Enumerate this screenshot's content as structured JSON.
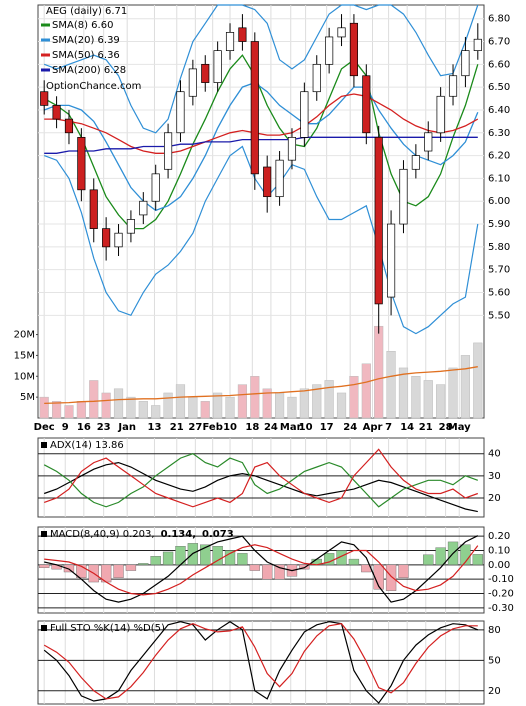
{
  "chart_data": [
    {
      "type": "candlestick",
      "title": "AEG (daily) 6.71",
      "annotation": "OptionChance.com",
      "xlim": [
        -0.5,
        35.5
      ],
      "xticks": [
        {
          "value": 0,
          "label": "Dec"
        },
        {
          "value": 1.7,
          "label": "9"
        },
        {
          "value": 3.2,
          "label": "16"
        },
        {
          "value": 4.8,
          "label": "23"
        },
        {
          "value": 6.7,
          "label": "Jan"
        },
        {
          "value": 8.9,
          "label": "13"
        },
        {
          "value": 10.7,
          "label": "21"
        },
        {
          "value": 12.2,
          "label": "27"
        },
        {
          "value": 13.6,
          "label": "Feb"
        },
        {
          "value": 15,
          "label": "10"
        },
        {
          "value": 16.8,
          "label": "18"
        },
        {
          "value": 18.3,
          "label": "24"
        },
        {
          "value": 19.9,
          "label": "Mar"
        },
        {
          "value": 21.1,
          "label": "10"
        },
        {
          "value": 22.8,
          "label": "17"
        },
        {
          "value": 24.7,
          "label": "24"
        },
        {
          "value": 26.5,
          "label": "Apr"
        },
        {
          "value": 27.8,
          "label": "7"
        },
        {
          "value": 29.3,
          "label": "14"
        },
        {
          "value": 30.8,
          "label": "21"
        },
        {
          "value": 32.4,
          "label": "28"
        },
        {
          "value": 33.5,
          "label": "May"
        }
      ],
      "ylim": [
        5.05,
        6.86
      ],
      "yticks": [
        {
          "value": 5.5,
          "label": "5.50"
        },
        {
          "value": 5.6,
          "label": "5.60"
        },
        {
          "value": 5.7,
          "label": "5.70"
        },
        {
          "value": 5.8,
          "label": "5.80"
        },
        {
          "value": 5.9,
          "label": "5.90"
        },
        {
          "value": 6.0,
          "label": "6.00"
        },
        {
          "value": 6.1,
          "label": "6.10"
        },
        {
          "value": 6.2,
          "label": "6.20"
        },
        {
          "value": 6.3,
          "label": "6.30"
        },
        {
          "value": 6.4,
          "label": "6.40"
        },
        {
          "value": 6.5,
          "label": "6.50"
        },
        {
          "value": 6.6,
          "label": "6.60"
        },
        {
          "value": 6.7,
          "label": "6.70"
        },
        {
          "value": 6.8,
          "label": "6.80"
        }
      ],
      "grid": true,
      "up_color": "#ffffff",
      "down_color": "#cc2020",
      "open": [
        6.48,
        6.42,
        6.36,
        6.28,
        6.05,
        5.88,
        5.8,
        5.86,
        5.94,
        6.0,
        6.14,
        6.3,
        6.46,
        6.6,
        6.52,
        6.66,
        6.76,
        6.7,
        6.15,
        6.02,
        6.18,
        6.28,
        6.48,
        6.6,
        6.72,
        6.78,
        6.55,
        6.28,
        5.58,
        5.9,
        6.14,
        6.22,
        6.3,
        6.46,
        6.55,
        6.66
      ],
      "high": [
        6.53,
        6.46,
        6.4,
        6.32,
        6.1,
        5.93,
        5.9,
        5.96,
        6.04,
        6.16,
        6.34,
        6.53,
        6.62,
        6.64,
        6.7,
        6.78,
        6.82,
        6.74,
        6.2,
        6.22,
        6.32,
        6.52,
        6.64,
        6.76,
        6.82,
        6.82,
        6.6,
        6.33,
        5.96,
        6.18,
        6.25,
        6.35,
        6.5,
        6.6,
        6.72,
        6.78
      ],
      "low": [
        6.38,
        6.32,
        6.25,
        6.0,
        5.82,
        5.74,
        5.76,
        5.82,
        5.9,
        5.96,
        6.1,
        6.26,
        6.42,
        6.48,
        6.48,
        6.62,
        6.66,
        6.05,
        5.95,
        5.98,
        6.14,
        6.24,
        6.44,
        6.56,
        6.68,
        6.5,
        6.25,
        5.42,
        5.5,
        5.86,
        6.1,
        6.18,
        6.26,
        6.42,
        6.5,
        6.62
      ],
      "close": [
        6.42,
        6.36,
        6.3,
        6.05,
        5.88,
        5.8,
        5.86,
        5.92,
        6.0,
        6.12,
        6.3,
        6.48,
        6.58,
        6.52,
        6.66,
        6.74,
        6.7,
        6.12,
        6.02,
        6.18,
        6.28,
        6.48,
        6.6,
        6.72,
        6.76,
        6.55,
        6.3,
        5.55,
        5.9,
        6.14,
        6.2,
        6.3,
        6.46,
        6.55,
        6.66,
        6.71
      ],
      "series": [
        {
          "name": "SMA(8) 6.60",
          "color": "#1a8a1a",
          "values": [
            6.45,
            6.42,
            6.38,
            6.28,
            6.15,
            6.02,
            5.94,
            5.88,
            5.88,
            5.92,
            6.0,
            6.12,
            6.25,
            6.36,
            6.48,
            6.58,
            6.64,
            6.55,
            6.42,
            6.32,
            6.25,
            6.24,
            6.32,
            6.45,
            6.58,
            6.62,
            6.55,
            6.3,
            6.12,
            6.0,
            5.98,
            6.02,
            6.12,
            6.28,
            6.42,
            6.6
          ]
        },
        {
          "name": "SMA(20) 6.39",
          "color": "#2f8fd6",
          "values": [
            6.4,
            6.42,
            6.42,
            6.4,
            6.35,
            6.26,
            6.16,
            6.06,
            6.0,
            5.96,
            5.98,
            6.02,
            6.1,
            6.2,
            6.32,
            6.42,
            6.5,
            6.52,
            6.48,
            6.42,
            6.38,
            6.34,
            6.34,
            6.38,
            6.44,
            6.5,
            6.5,
            6.4,
            6.32,
            6.25,
            6.2,
            6.18,
            6.16,
            6.2,
            6.26,
            6.39
          ]
        },
        {
          "name": "SMA(50) 6.36",
          "color": "#d42020",
          "values": [
            6.36,
            6.36,
            6.35,
            6.34,
            6.32,
            6.3,
            6.27,
            6.24,
            6.22,
            6.21,
            6.21,
            6.22,
            6.24,
            6.26,
            6.28,
            6.3,
            6.31,
            6.3,
            6.29,
            6.29,
            6.3,
            6.33,
            6.37,
            6.42,
            6.46,
            6.47,
            6.46,
            6.43,
            6.4,
            6.36,
            6.33,
            6.31,
            6.3,
            6.31,
            6.33,
            6.36
          ]
        },
        {
          "name": "SMA(200) 6.28",
          "color": "#1a1aaa",
          "values": [
            6.21,
            6.21,
            6.22,
            6.22,
            6.22,
            6.23,
            6.23,
            6.23,
            6.24,
            6.24,
            6.24,
            6.25,
            6.25,
            6.26,
            6.26,
            6.26,
            6.27,
            6.27,
            6.27,
            6.27,
            6.27,
            6.28,
            6.28,
            6.28,
            6.28,
            6.28,
            6.28,
            6.28,
            6.28,
            6.28,
            6.28,
            6.28,
            6.28,
            6.28,
            6.28,
            6.28
          ]
        }
      ],
      "bands": {
        "color": "#2f8fd6",
        "upper": [
          6.6,
          6.58,
          6.6,
          6.62,
          6.64,
          6.62,
          6.55,
          6.42,
          6.32,
          6.3,
          6.36,
          6.54,
          6.7,
          6.78,
          6.86,
          6.86,
          6.86,
          6.84,
          6.78,
          6.62,
          6.58,
          6.62,
          6.72,
          6.82,
          6.86,
          6.86,
          6.84,
          6.86,
          6.86,
          6.82,
          6.74,
          6.64,
          6.55,
          6.56,
          6.7,
          6.86
        ],
        "lower": [
          6.2,
          6.18,
          6.1,
          5.95,
          5.75,
          5.6,
          5.52,
          5.5,
          5.6,
          5.68,
          5.72,
          5.78,
          5.86,
          6.0,
          6.1,
          6.2,
          6.24,
          6.1,
          6.02,
          6.08,
          6.16,
          6.14,
          6.02,
          5.92,
          5.92,
          5.95,
          5.98,
          5.8,
          5.6,
          5.45,
          5.42,
          5.45,
          5.5,
          5.55,
          5.58,
          5.9
        ]
      },
      "y2lim": [
        0,
        99000000
      ],
      "y2ticks": [
        {
          "value": 5000000,
          "label": "5M"
        },
        {
          "value": 10000000,
          "label": "10M"
        },
        {
          "value": 15000000,
          "label": "15M"
        },
        {
          "value": 20000000,
          "label": "20M"
        }
      ],
      "volume": {
        "axis": "y2",
        "up_color": "#d8d8d8",
        "down_color": "#f0b8c0",
        "values": [
          5000000.0,
          4000000.0,
          3000000.0,
          4000000.0,
          9000000.0,
          6000000.0,
          7000000.0,
          5000000.0,
          4000000.0,
          3000000.0,
          6000000.0,
          8000000.0,
          5000000.0,
          4000000.0,
          6000000.0,
          5000000.0,
          8000000.0,
          10000000.0,
          7000000.0,
          6000000.0,
          5000000.0,
          7000000.0,
          8000000.0,
          9000000.0,
          6000000.0,
          10000000.0,
          13000000.0,
          22000000.0,
          16000000.0,
          12000000.0,
          10000000.0,
          9000000.0,
          8000000.0,
          12000000.0,
          15000000.0,
          18000000.0
        ],
        "ma_color": "#e07020",
        "ma": [
          3500000.0,
          3600000.0,
          3700000.0,
          3900000.0,
          4000000.0,
          4200000.0,
          4400000.0,
          4500000.0,
          4600000.0,
          4600000.0,
          4800000.0,
          5000000.0,
          5100000.0,
          5200000.0,
          5300000.0,
          5400000.0,
          5600000.0,
          5800000.0,
          6000000.0,
          6100000.0,
          6300000.0,
          6500000.0,
          6900000.0,
          7300000.0,
          7600000.0,
          8000000.0,
          8600000.0,
          9400000.0,
          10000000.0,
          10500000.0,
          10800000.0,
          11000000.0,
          11200000.0,
          11500000.0,
          11800000.0,
          12300000.0
        ]
      }
    },
    {
      "type": "line",
      "title": "ADX(14) 13.86",
      "ylim": [
        11.4,
        47.1
      ],
      "yticks": [
        20,
        30,
        40
      ],
      "series": [
        {
          "color": "#000000",
          "values": [
            22,
            24,
            27,
            30,
            33,
            35,
            36,
            34,
            31,
            28,
            26,
            24,
            23,
            25,
            28,
            30,
            31,
            30,
            28,
            26,
            24,
            22,
            21,
            22,
            23,
            24,
            26,
            28,
            27,
            25,
            23,
            21,
            19,
            17,
            15,
            13.86
          ]
        },
        {
          "color": "#2a8a2a",
          "values": [
            35,
            32,
            28,
            22,
            18,
            16,
            18,
            22,
            25,
            30,
            34,
            38,
            40,
            36,
            34,
            38,
            36,
            26,
            22,
            24,
            28,
            32,
            34,
            36,
            34,
            28,
            22,
            16,
            20,
            24,
            26,
            28,
            28,
            26,
            30,
            28
          ]
        },
        {
          "color": "#d42020",
          "values": [
            18,
            20,
            24,
            32,
            36,
            38,
            34,
            30,
            26,
            22,
            20,
            18,
            16,
            18,
            20,
            18,
            22,
            34,
            36,
            30,
            26,
            22,
            20,
            18,
            20,
            30,
            36,
            42,
            34,
            28,
            24,
            22,
            22,
            24,
            20,
            22
          ]
        }
      ]
    },
    {
      "type": "macd",
      "ylim": [
        -0.336,
        0.264
      ],
      "yticks": [
        {
          "value": 0.2,
          "label": "0.20"
        },
        {
          "value": 0.1,
          "label": "0.10"
        },
        {
          "value": 0,
          "label": "0.00"
        },
        {
          "value": -0.1,
          "label": "-0.10"
        },
        {
          "value": -0.2,
          "label": "-0.20"
        },
        {
          "value": -0.3,
          "label": "-0.30"
        }
      ],
      "series": [
        {
          "name": "MACD(8,40,9) 0.203,",
          "color": "#000000",
          "values": [
            0.02,
            0.0,
            -0.03,
            -0.1,
            -0.18,
            -0.24,
            -0.26,
            -0.24,
            -0.2,
            -0.14,
            -0.08,
            0.0,
            0.08,
            0.12,
            0.16,
            0.18,
            0.2,
            0.1,
            0.02,
            -0.02,
            -0.04,
            -0.02,
            0.04,
            0.1,
            0.16,
            0.14,
            0.05,
            -0.15,
            -0.26,
            -0.24,
            -0.18,
            -0.1,
            -0.02,
            0.08,
            0.16,
            0.203
          ]
        },
        {
          "name": "0.134,",
          "color": "#d42020",
          "values": [
            0.04,
            0.03,
            0.02,
            -0.01,
            -0.06,
            -0.12,
            -0.17,
            -0.2,
            -0.21,
            -0.2,
            -0.17,
            -0.13,
            -0.07,
            -0.02,
            0.03,
            0.08,
            0.12,
            0.14,
            0.12,
            0.08,
            0.04,
            0.01,
            0.0,
            0.02,
            0.06,
            0.1,
            0.1,
            0.02,
            -0.08,
            -0.15,
            -0.18,
            -0.17,
            -0.14,
            -0.08,
            0.02,
            0.134
          ]
        }
      ],
      "histogram": {
        "name": "0.073",
        "color": "#1f4fbf",
        "positive_color": "#8fcf8f",
        "negative_color": "#f0a8b0",
        "values": [
          -0.02,
          -0.03,
          -0.05,
          -0.09,
          -0.12,
          -0.12,
          -0.09,
          -0.04,
          0.01,
          0.06,
          0.09,
          0.13,
          0.15,
          0.14,
          0.13,
          0.1,
          0.08,
          -0.04,
          -0.1,
          -0.1,
          -0.08,
          -0.03,
          0.04,
          0.08,
          0.1,
          0.04,
          -0.05,
          -0.17,
          -0.18,
          -0.09,
          0.0,
          0.07,
          0.12,
          0.16,
          0.14,
          0.073
        ]
      }
    },
    {
      "type": "line",
      "title": "Full STO %K(14) %D(5)",
      "ylim": [
        7,
        88.7
      ],
      "yticks": [
        20,
        50,
        80
      ],
      "series": [
        {
          "color": "#000000",
          "values": [
            60,
            50,
            35,
            15,
            10,
            12,
            20,
            40,
            55,
            70,
            85,
            88,
            85,
            70,
            80,
            88,
            80,
            20,
            12,
            40,
            60,
            78,
            85,
            88,
            86,
            40,
            20,
            8,
            25,
            50,
            65,
            75,
            82,
            86,
            85,
            80
          ]
        },
        {
          "color": "#d42020",
          "values": [
            65,
            58,
            48,
            33,
            20,
            12,
            14,
            24,
            38,
            55,
            70,
            81,
            86,
            81,
            78,
            79,
            83,
            63,
            37,
            24,
            37,
            59,
            74,
            84,
            86,
            71,
            49,
            23,
            18,
            28,
            47,
            63,
            74,
            81,
            84,
            84
          ]
        }
      ]
    }
  ]
}
